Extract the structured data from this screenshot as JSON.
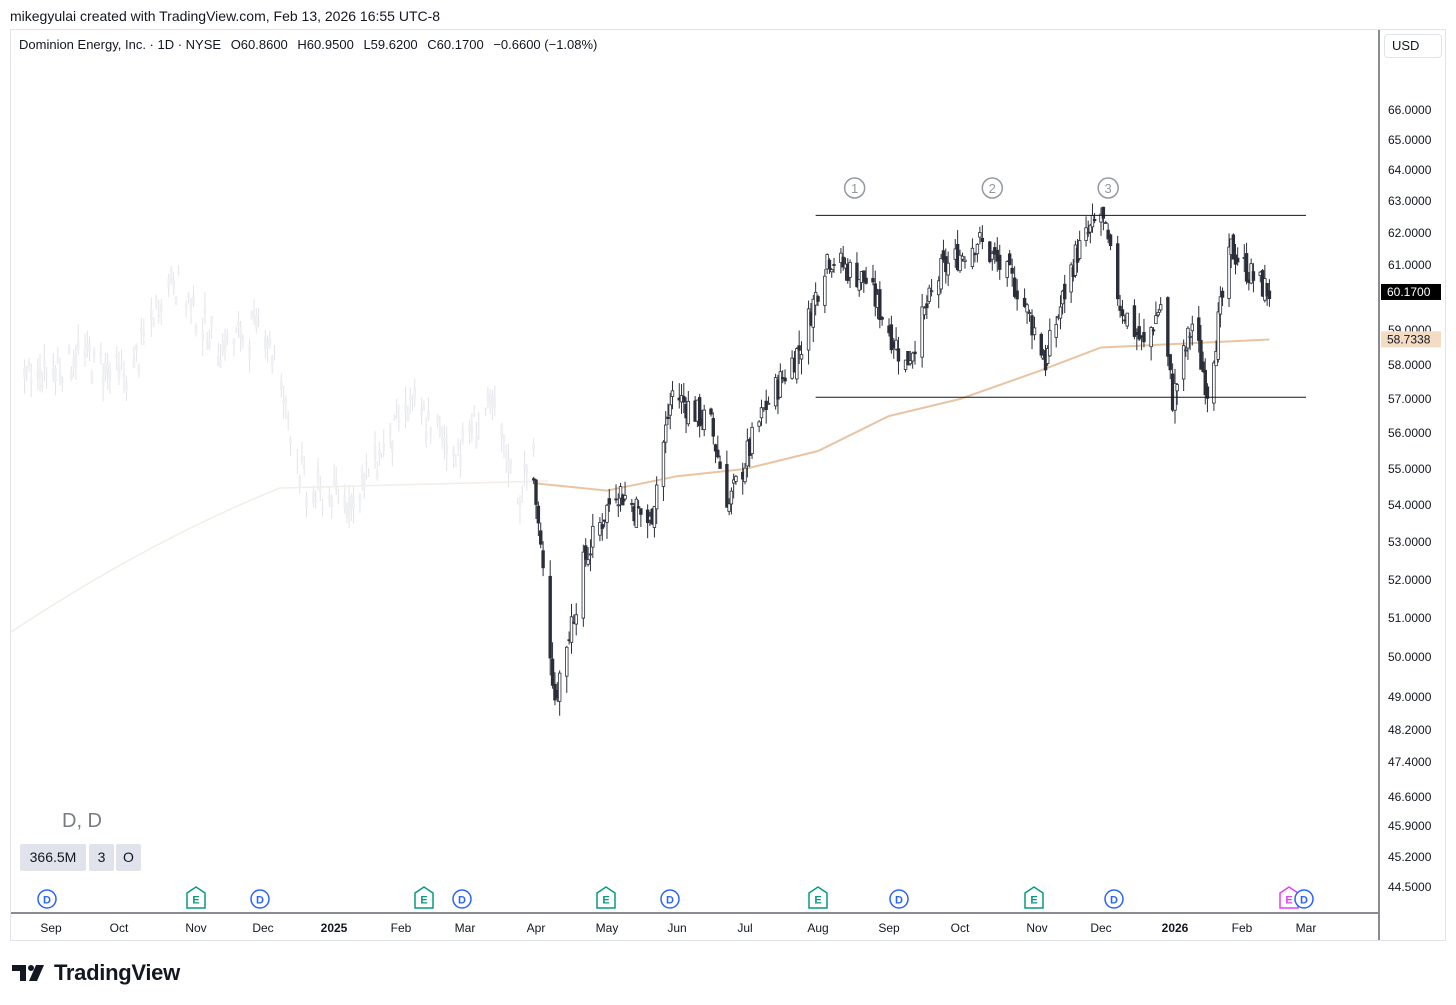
{
  "header": {
    "credit": "mikegyulai created with TradingView.com, Feb 13, 2026 16:55 UTC-8"
  },
  "legend": {
    "title": "Dominion Energy, Inc. · 1D · NYSE",
    "open": "O60.8600",
    "high": "H60.9500",
    "low": "L59.6200",
    "close": "C60.1700",
    "change": "−0.6600 (−1.08%)"
  },
  "currency": "USD",
  "symbol_label": "D, D",
  "stats": {
    "volume": "366.5M",
    "count": "3",
    "flag": "O"
  },
  "footer": {
    "brand": "TradingView"
  },
  "colors": {
    "candle_up": "#ffffff",
    "candle_down": "#2a2e39",
    "ma": "#e8c4a2",
    "price_tag": "#000000",
    "ma_tag": "#f4dcc4",
    "dividend": "#2962ff",
    "earnings": "#089981",
    "future_earnings": "#e040fb"
  },
  "chart_data": {
    "type": "candlestick",
    "y_ticks": [
      "66.0000",
      "65.0000",
      "64.0000",
      "63.0000",
      "62.0000",
      "61.0000",
      "59.0000",
      "58.0000",
      "57.0000",
      "56.0000",
      "55.0000",
      "54.0000",
      "53.0000",
      "52.0000",
      "51.0000",
      "50.0000",
      "49.0000",
      "48.2000",
      "47.4000",
      "46.6000",
      "45.9000",
      "45.2000",
      "44.5000"
    ],
    "x_labels": [
      "Sep",
      "Oct",
      "Nov",
      "Dec",
      "2025",
      "Feb",
      "Mar",
      "Apr",
      "May",
      "Jun",
      "Jul",
      "Aug",
      "Sep",
      "Oct",
      "Nov",
      "Dec",
      "2026",
      "Feb",
      "Mar"
    ],
    "bold_x_labels": [
      "2025",
      "2026"
    ],
    "last_price": "60.1700",
    "ma_value": "58.7338",
    "ma_series": [
      {
        "date": "2025-04-01",
        "v": 54.6
      },
      {
        "date": "2025-05-01",
        "v": 54.4
      },
      {
        "date": "2025-06-01",
        "v": 54.8
      },
      {
        "date": "2025-07-01",
        "v": 55.0
      },
      {
        "date": "2025-08-01",
        "v": 55.5
      },
      {
        "date": "2025-09-01",
        "v": 56.5
      },
      {
        "date": "2025-10-01",
        "v": 57.0
      },
      {
        "date": "2025-11-01",
        "v": 57.8
      },
      {
        "date": "2025-12-01",
        "v": 58.5
      },
      {
        "date": "2026-01-01",
        "v": 58.6
      },
      {
        "date": "2026-02-13",
        "v": 58.73
      }
    ],
    "channel": {
      "top": 62.55,
      "bottom": 57.05,
      "start": "2025-07-31",
      "end": "2026-03-01"
    },
    "markers": [
      "1",
      "2",
      "3"
    ],
    "events": [
      {
        "type": "D"
      },
      {
        "type": "E"
      },
      {
        "type": "D"
      },
      {
        "type": "E"
      },
      {
        "type": "D"
      },
      {
        "type": "E"
      },
      {
        "type": "D"
      },
      {
        "type": "E"
      },
      {
        "type": "D"
      },
      {
        "type": "E"
      },
      {
        "type": "D"
      },
      {
        "type": "E"
      },
      {
        "type": "D"
      }
    ]
  }
}
